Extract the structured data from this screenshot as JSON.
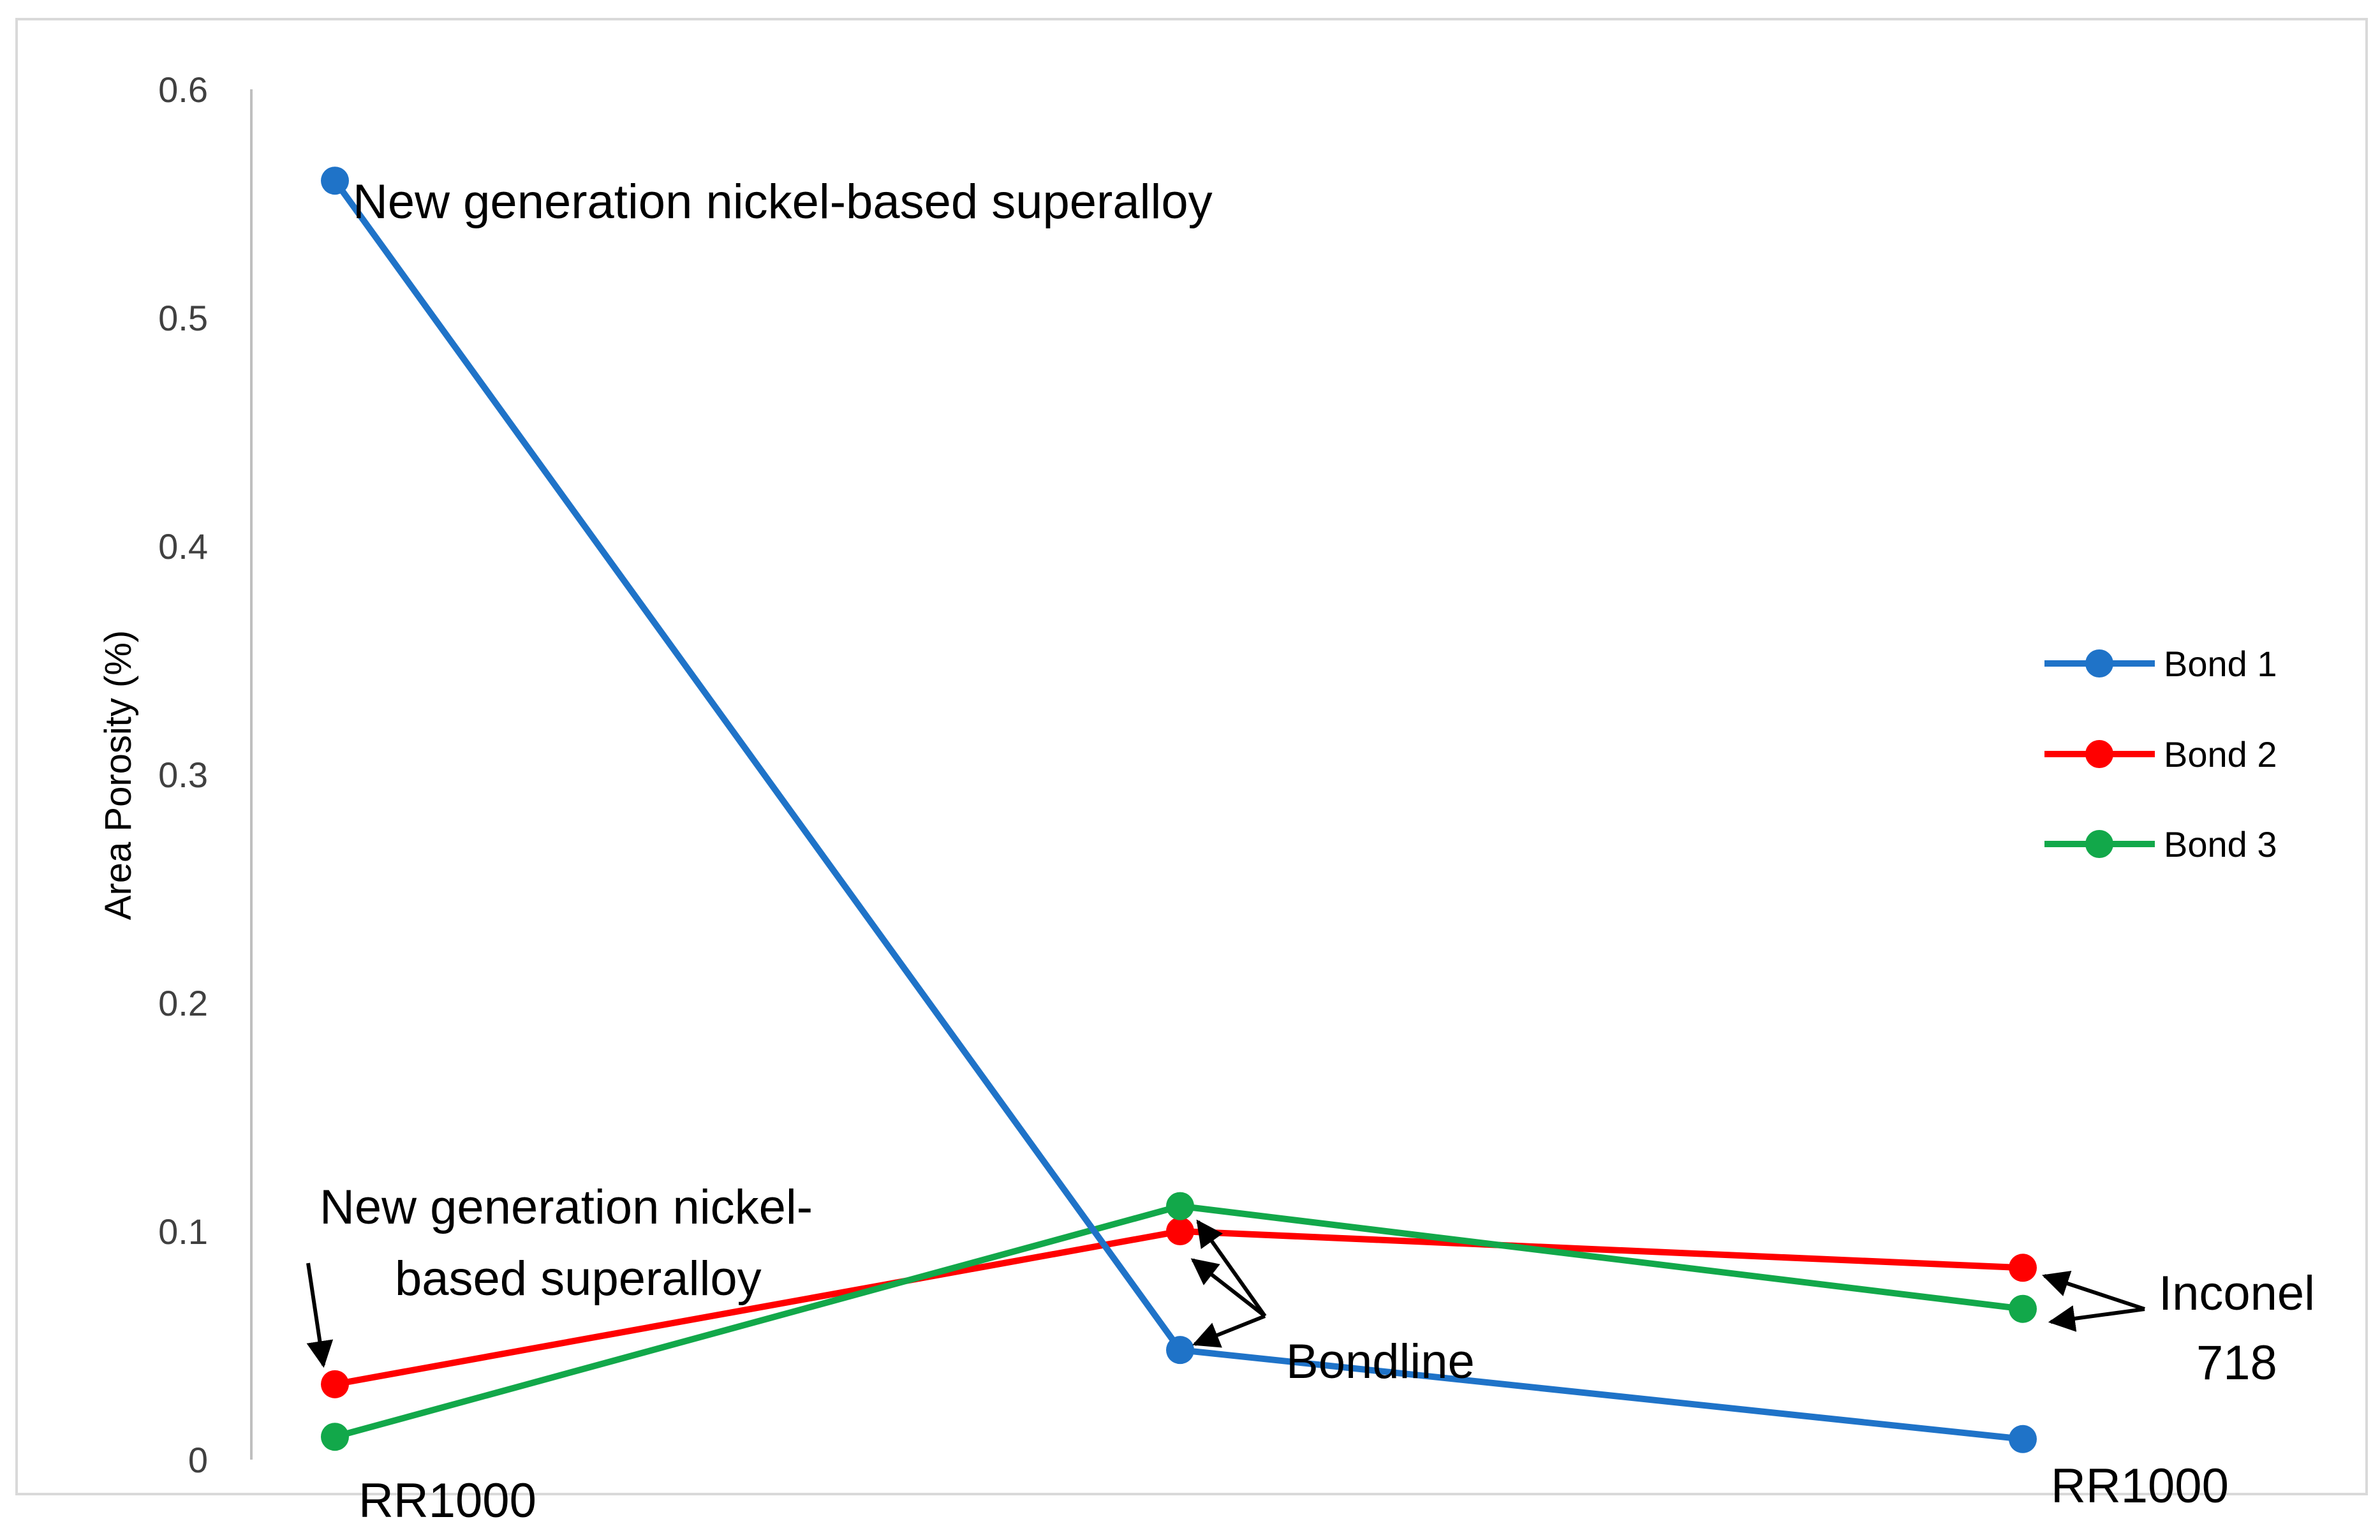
{
  "chart_data": {
    "type": "line",
    "title": "",
    "xlabel": "",
    "ylabel": "Area Porosity (%)",
    "categories": [
      "",
      "",
      ""
    ],
    "ylim": [
      0,
      0.6
    ],
    "yticks": [
      "0",
      "0.1",
      "0.2",
      "0.3",
      "0.4",
      "0.5",
      "0.6"
    ],
    "grid": false,
    "legend_position": "right",
    "series": [
      {
        "name": "Bond 1",
        "color": "#1f73c8",
        "values": [
          0.56,
          0.048,
          0.009
        ]
      },
      {
        "name": "Bond 2",
        "color": "#ff0000",
        "values": [
          0.033,
          0.1,
          0.084
        ]
      },
      {
        "name": "Bond 3",
        "color": "#12a84a",
        "values": [
          0.01,
          0.111,
          0.066
        ]
      }
    ],
    "annotations": {
      "top": "New generation nickel-based superalloy",
      "left_line1": "New generation nickel-",
      "left_line2": "based superalloy",
      "rr_left": "RR1000",
      "bondline": "Bondline",
      "inconel_line1": "Inconel",
      "inconel_line2": "718",
      "rr_right": "RR1000"
    }
  }
}
